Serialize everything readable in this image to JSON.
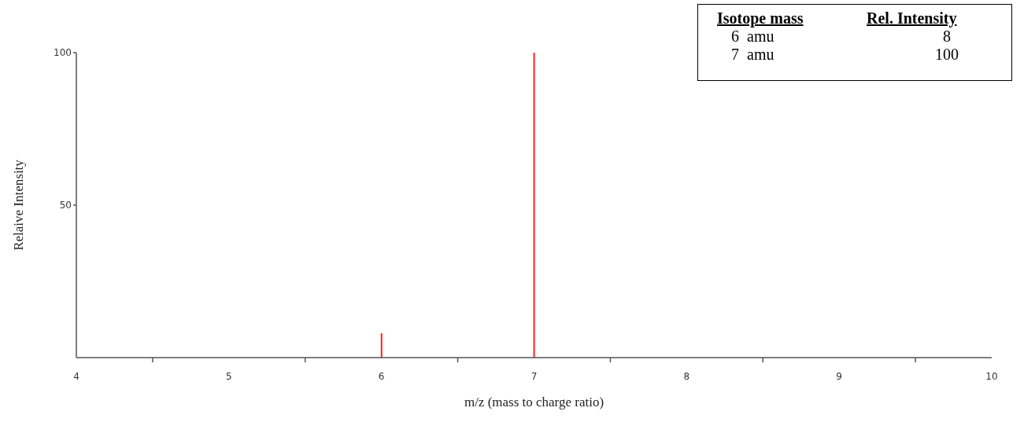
{
  "chart_data": {
    "type": "bar",
    "xlabel": "m/z (mass to charge ratio)",
    "ylabel": "Relaive Intensity",
    "x": [
      6,
      7
    ],
    "values": [
      8,
      100
    ],
    "color": "#ff2020",
    "xlim": [
      4,
      10
    ],
    "xticks": [
      4,
      {
        "value": 4.5,
        "label": null
      },
      5,
      {
        "value": 5.5,
        "label": null
      },
      6,
      {
        "value": 6.5,
        "label": null
      },
      7,
      {
        "value": 7.5,
        "label": null
      },
      8,
      {
        "value": 8.5,
        "label": null
      },
      9,
      {
        "value": 9.5,
        "label": null
      },
      10
    ],
    "ylim": [
      0,
      100
    ],
    "yticks": [
      50,
      100
    ],
    "grid": false,
    "annotations": [
      "Isotope mass",
      "Rel. Intensity",
      "6  amu",
      "8",
      "7  amu",
      "100"
    ]
  }
}
